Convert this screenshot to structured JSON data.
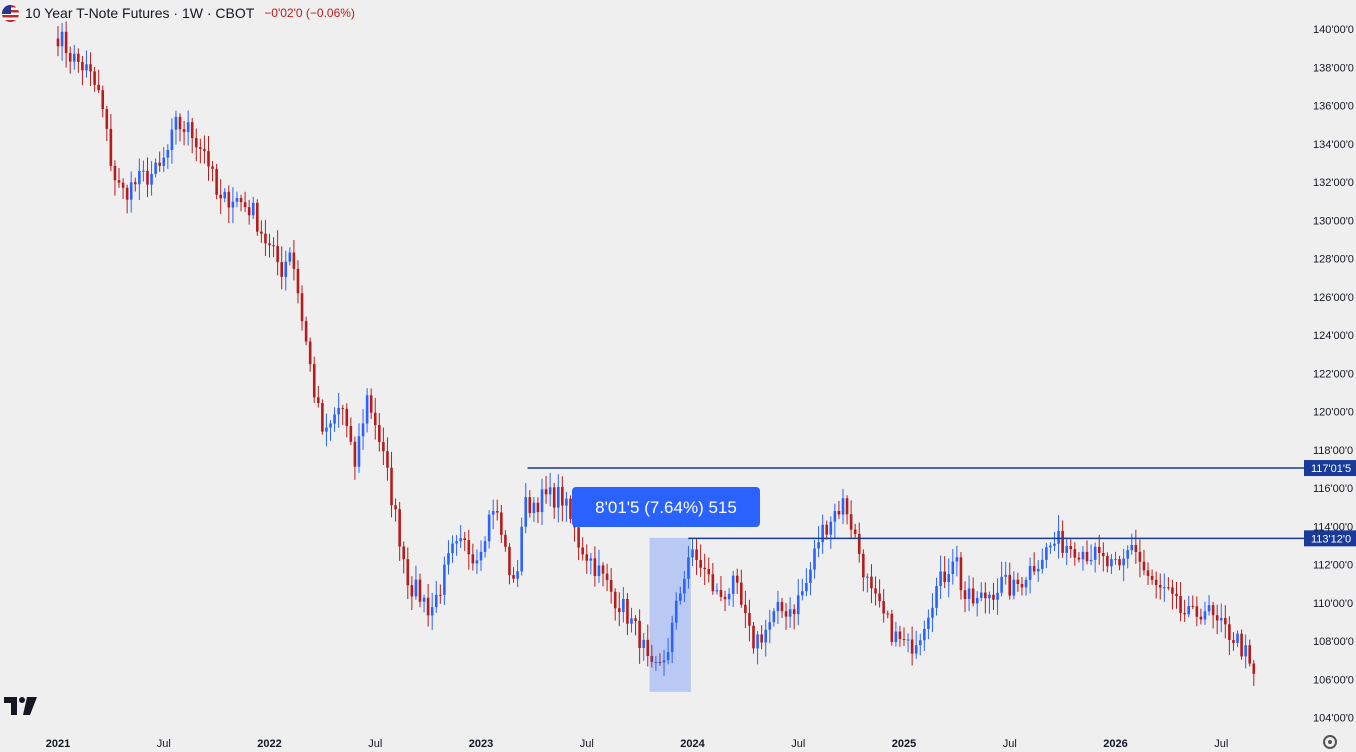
{
  "header": {
    "title": "10 Year T-Note Futures · 1W · CBOT",
    "change": "−0'02'0 (−0.06%)",
    "flag_icon": "us-flag-icon"
  },
  "colors": {
    "up": "#2962ff",
    "down": "#b71c1c",
    "background": "#efefef",
    "level_line": "#1a3a9a",
    "measure": "#2962ff"
  },
  "chart_data": {
    "type": "candlestick",
    "interval": "1W",
    "x_tick_labels": [
      "2021",
      "Jul",
      "2022",
      "Jul",
      "2023",
      "Jul",
      "2024",
      "Jul",
      "2025",
      "Jul",
      "2026",
      "Jul"
    ],
    "y_tick_labels": [
      "140'00'0",
      "138'00'0",
      "136'00'0",
      "134'00'0",
      "132'00'0",
      "130'00'0",
      "128'00'0",
      "126'00'0",
      "124'00'0",
      "122'00'0",
      "120'00'0",
      "118'00'0",
      "116'00'0",
      "114'00'0",
      "112'00'0",
      "110'00'0",
      "108'00'0",
      "106'00'0",
      "104'00'0"
    ],
    "ylim": [
      104,
      140
    ],
    "horizontal_levels": [
      {
        "label": "117'01'5",
        "value": 117.05
      },
      {
        "label": "113'12'0",
        "value": 113.375
      }
    ],
    "measurement": {
      "label": "8'01'5 (7.64%) 515",
      "from": 105.35,
      "to": 113.4
    },
    "path": [
      [
        2021.0,
        139.7
      ],
      [
        2021.06,
        138.6
      ],
      [
        2021.14,
        137.8
      ],
      [
        2021.2,
        136.4
      ],
      [
        2021.26,
        132.5
      ],
      [
        2021.3,
        131.4
      ],
      [
        2021.4,
        132.2
      ],
      [
        2021.48,
        132.6
      ],
      [
        2021.52,
        133.6
      ],
      [
        2021.56,
        135.0
      ],
      [
        2021.62,
        134.7
      ],
      [
        2021.7,
        133.6
      ],
      [
        2021.76,
        130.8
      ],
      [
        2021.82,
        131.3
      ],
      [
        2021.92,
        130.5
      ],
      [
        2022.0,
        128.5
      ],
      [
        2022.06,
        127.4
      ],
      [
        2022.1,
        128.7
      ],
      [
        2022.16,
        124.5
      ],
      [
        2022.22,
        120.5
      ],
      [
        2022.26,
        118.5
      ],
      [
        2022.34,
        120.5
      ],
      [
        2022.4,
        117.0
      ],
      [
        2022.46,
        120.8
      ],
      [
        2022.5,
        119.5
      ],
      [
        2022.56,
        116.5
      ],
      [
        2022.66,
        111.0
      ],
      [
        2022.72,
        110.3
      ],
      [
        2022.76,
        109.6
      ],
      [
        2022.8,
        110.6
      ],
      [
        2022.86,
        112.6
      ],
      [
        2022.92,
        113.0
      ],
      [
        2022.98,
        112.5
      ],
      [
        2023.06,
        115.2
      ],
      [
        2023.12,
        112.5
      ],
      [
        2023.16,
        110.5
      ],
      [
        2023.2,
        115.0
      ],
      [
        2023.3,
        115.5
      ],
      [
        2023.38,
        115.6
      ],
      [
        2023.46,
        113.2
      ],
      [
        2023.56,
        111.6
      ],
      [
        2023.62,
        110.5
      ],
      [
        2023.68,
        109.6
      ],
      [
        2023.76,
        108.0
      ],
      [
        2023.8,
        106.3
      ],
      [
        2023.84,
        106.4
      ],
      [
        2023.88,
        107.5
      ],
      [
        2023.92,
        109.5
      ],
      [
        2023.98,
        112.5
      ],
      [
        2024.04,
        112.0
      ],
      [
        2024.12,
        110.3
      ],
      [
        2024.2,
        110.9
      ],
      [
        2024.28,
        107.9
      ],
      [
        2024.34,
        108.5
      ],
      [
        2024.4,
        109.5
      ],
      [
        2024.48,
        109.8
      ],
      [
        2024.54,
        111.0
      ],
      [
        2024.6,
        113.5
      ],
      [
        2024.66,
        114.6
      ],
      [
        2024.72,
        115.3
      ],
      [
        2024.78,
        113.0
      ],
      [
        2024.84,
        110.5
      ],
      [
        2024.9,
        109.3
      ],
      [
        2024.96,
        108.2
      ],
      [
        2025.02,
        107.6
      ],
      [
        2025.08,
        108.6
      ],
      [
        2025.14,
        110.5
      ],
      [
        2025.2,
        111.6
      ],
      [
        2025.24,
        112.8
      ],
      [
        2025.28,
        110.3
      ],
      [
        2025.34,
        110.0
      ],
      [
        2025.4,
        110.5
      ],
      [
        2025.46,
        111.0
      ],
      [
        2025.52,
        110.7
      ],
      [
        2025.58,
        111.6
      ],
      [
        2025.66,
        112.6
      ],
      [
        2025.72,
        113.2
      ],
      [
        2025.8,
        113.0
      ],
      [
        2025.88,
        112.6
      ],
      [
        2025.96,
        112.0
      ],
      [
        2026.02,
        111.6
      ],
      [
        2026.08,
        113.3
      ],
      [
        2026.12,
        112.0
      ],
      [
        2026.18,
        110.8
      ],
      [
        2026.24,
        110.5
      ],
      [
        2026.3,
        109.6
      ],
      [
        2026.36,
        109.2
      ],
      [
        2026.42,
        109.8
      ],
      [
        2026.48,
        108.8
      ],
      [
        2026.54,
        108.4
      ],
      [
        2026.58,
        108.0
      ],
      [
        2026.62,
        107.2
      ],
      [
        2026.64,
        106.2
      ],
      [
        2026.66,
        106.1
      ]
    ]
  }
}
